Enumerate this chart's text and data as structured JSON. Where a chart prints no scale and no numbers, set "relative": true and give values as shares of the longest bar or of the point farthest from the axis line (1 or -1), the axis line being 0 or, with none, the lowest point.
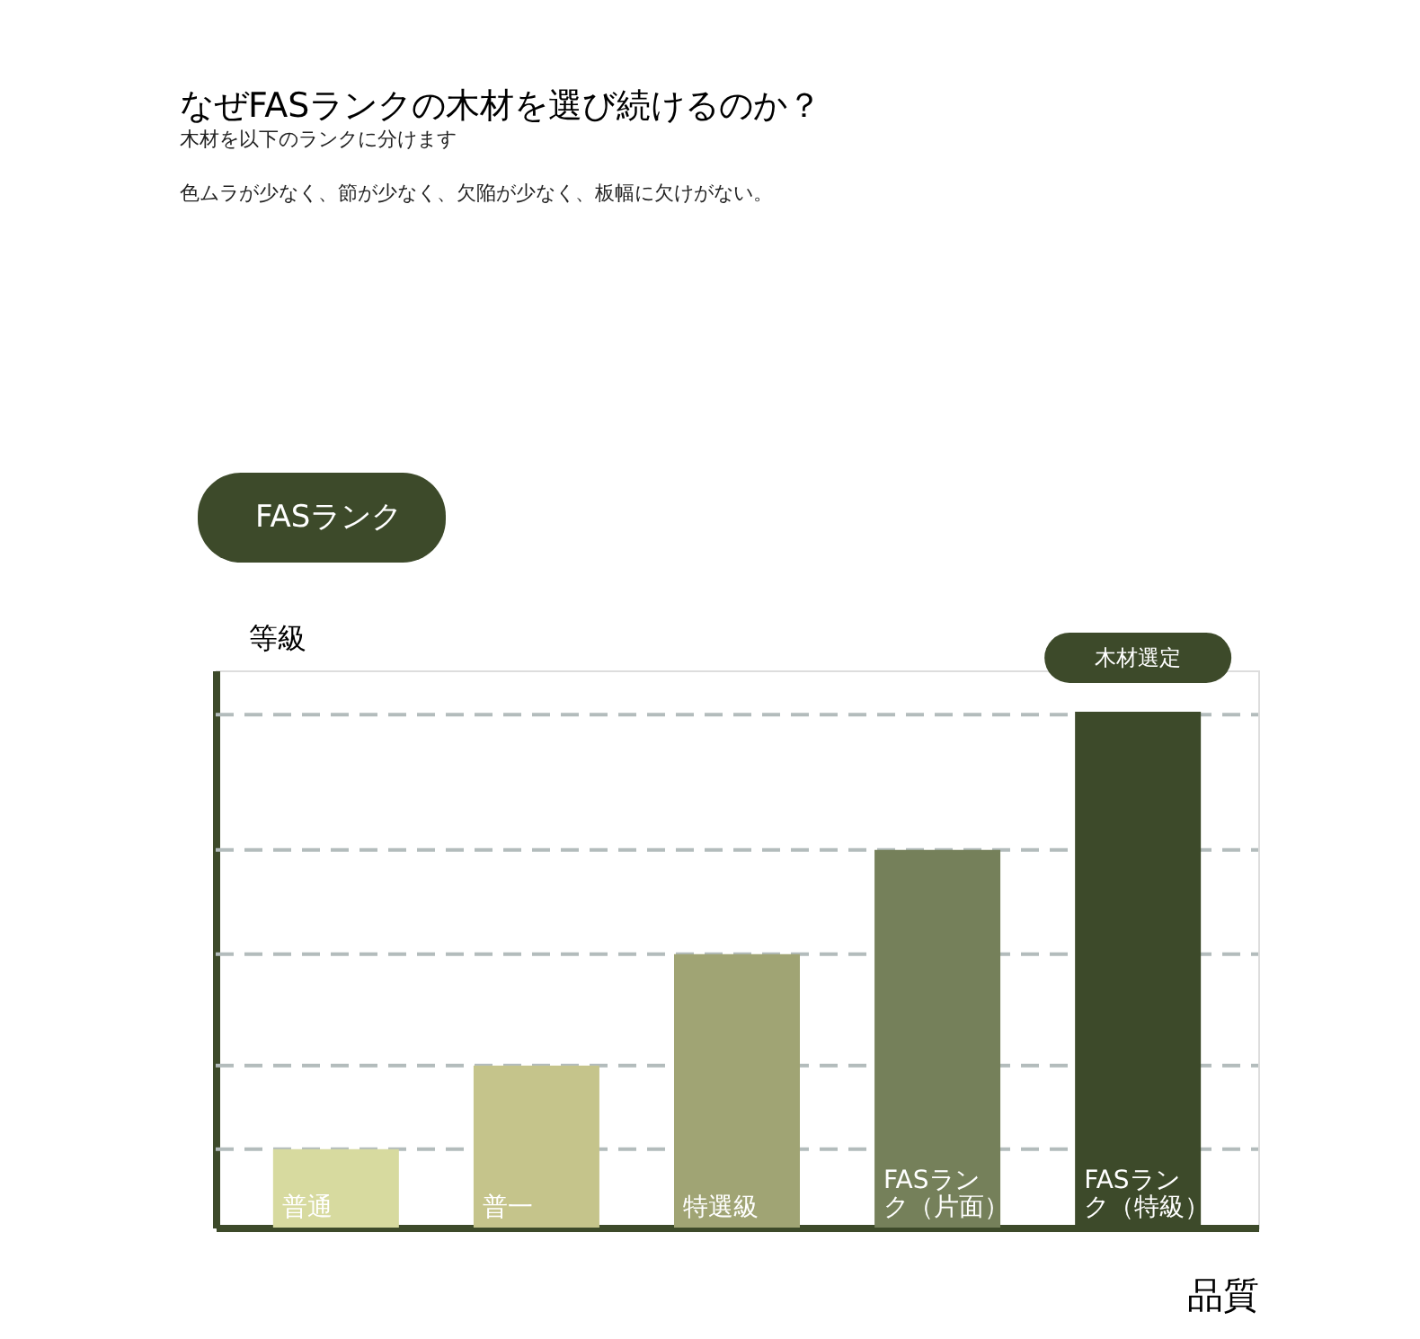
{
  "chart_data": {
    "type": "bar",
    "title": "なぜFASランクの木材を選び続けるのか？",
    "subtitle": [
      "木材を以下のランクに分けます",
      "色ムラが少なく、節が少なく、欠陥が少なく、板幅に欠けがない。"
    ],
    "xlabel": "品質",
    "ylabel": "等級",
    "relative": true,
    "categories": [
      "普通",
      "普一",
      "特選級",
      "FASランク（片面）",
      "FASランク（特級）"
    ],
    "values": [
      0.152,
      0.314,
      0.53,
      0.732,
      1
    ],
    "colors": [
      "#d7da9f",
      "#c5c48b",
      "#a0a474",
      "#75805a",
      "#3d4a2a"
    ],
    "ref_lines": [
      {
        "axis": "y",
        "value": 0.152,
        "color": "#b3bcbc",
        "line_style": "dashed"
      },
      {
        "axis": "y",
        "value": 0.314,
        "color": "#b3bcbc",
        "line_style": "dashed"
      },
      {
        "axis": "y",
        "value": 0.53,
        "color": "#b3bcbc",
        "line_style": "dashed"
      },
      {
        "axis": "y",
        "value": 0.732,
        "color": "#b3bcbc",
        "line_style": "dashed"
      },
      {
        "axis": "y",
        "value": 0.994,
        "color": "#b3bcbc",
        "line_style": "dashed"
      }
    ],
    "annotations": [
      "FASランク",
      {
        "text": "木材選定",
        "x": "FASランク（特級）",
        "y": 1
      }
    ]
  }
}
